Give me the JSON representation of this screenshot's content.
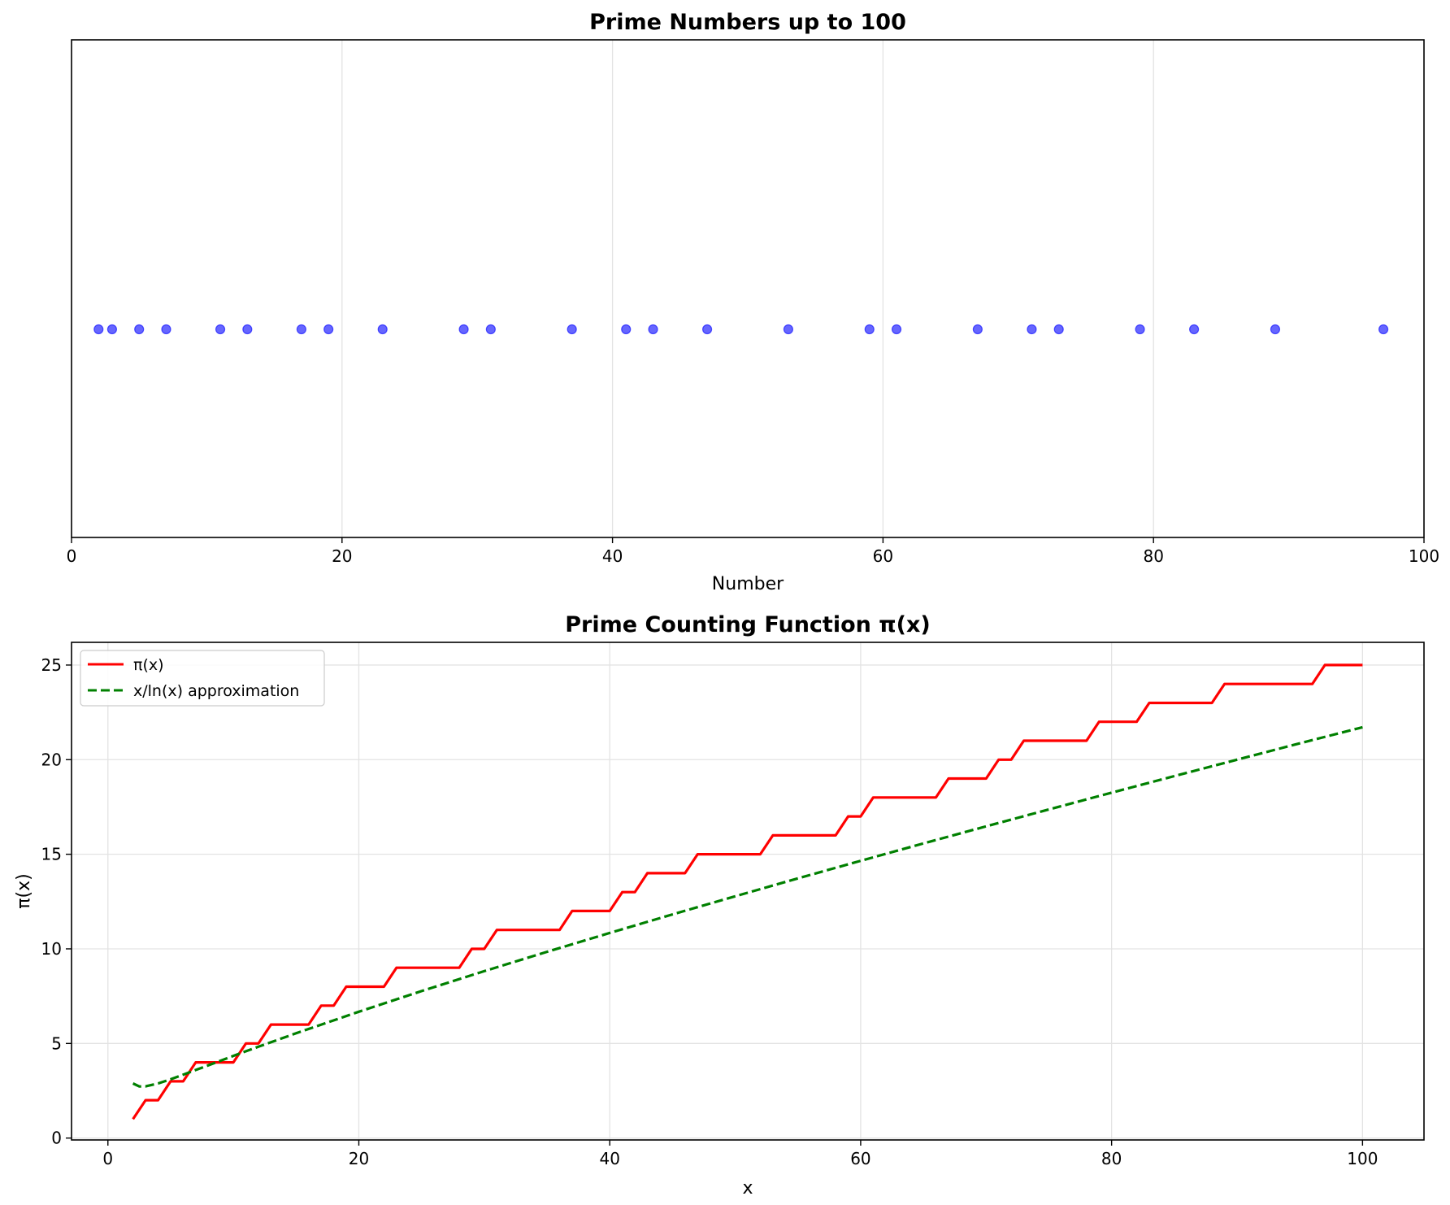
{
  "colors": {
    "scatter": "#0000ff",
    "pi_line": "#ff0000",
    "approx_line": "#008000",
    "grid": "#e3e3e3"
  },
  "chart_data": [
    {
      "type": "scatter",
      "title": "Prime Numbers up to 100",
      "xlabel": "Number",
      "ylabel": "",
      "xlim": [
        0,
        100
      ],
      "y_hidden": true,
      "grid": "vertical",
      "xticks": [
        0,
        20,
        40,
        60,
        80,
        100
      ],
      "x": [
        2,
        3,
        5,
        7,
        11,
        13,
        17,
        19,
        23,
        29,
        31,
        37,
        41,
        43,
        47,
        53,
        59,
        61,
        67,
        71,
        73,
        79,
        83,
        89,
        97
      ],
      "y": [
        0,
        0,
        0,
        0,
        0,
        0,
        0,
        0,
        0,
        0,
        0,
        0,
        0,
        0,
        0,
        0,
        0,
        0,
        0,
        0,
        0,
        0,
        0,
        0,
        0
      ],
      "marker_color": "blue",
      "marker_alpha": 0.6
    },
    {
      "type": "line",
      "title": "Prime Counting Function π(x)",
      "xlabel": "x",
      "ylabel": "π(x)",
      "xlim": [
        -2.9,
        104.9
      ],
      "ylim": [
        -0.1,
        26.2
      ],
      "grid": "both",
      "legend_position": "top-left",
      "xticks": [
        0,
        20,
        40,
        60,
        80,
        100
      ],
      "yticks": [
        0,
        5,
        10,
        15,
        20,
        25
      ],
      "series": [
        {
          "name": "π(x)",
          "style": "solid",
          "color": "red",
          "x": [
            2,
            3,
            4,
            5,
            6,
            7,
            8,
            9,
            10,
            11,
            12,
            13,
            14,
            15,
            16,
            17,
            18,
            19,
            20,
            21,
            22,
            23,
            24,
            25,
            26,
            27,
            28,
            29,
            30,
            31,
            32,
            33,
            34,
            35,
            36,
            37,
            38,
            39,
            40,
            41,
            42,
            43,
            44,
            45,
            46,
            47,
            48,
            49,
            50,
            51,
            52,
            53,
            54,
            55,
            56,
            57,
            58,
            59,
            60,
            61,
            62,
            63,
            64,
            65,
            66,
            67,
            68,
            69,
            70,
            71,
            72,
            73,
            74,
            75,
            76,
            77,
            78,
            79,
            80,
            81,
            82,
            83,
            84,
            85,
            86,
            87,
            88,
            89,
            90,
            91,
            92,
            93,
            94,
            95,
            96,
            97,
            98,
            99,
            100
          ],
          "values": [
            1,
            2,
            2,
            3,
            3,
            4,
            4,
            4,
            4,
            5,
            5,
            6,
            6,
            6,
            6,
            7,
            7,
            8,
            8,
            8,
            8,
            9,
            9,
            9,
            9,
            9,
            9,
            10,
            10,
            11,
            11,
            11,
            11,
            11,
            11,
            12,
            12,
            12,
            12,
            13,
            13,
            14,
            14,
            14,
            14,
            15,
            15,
            15,
            15,
            15,
            15,
            16,
            16,
            16,
            16,
            16,
            16,
            17,
            17,
            18,
            18,
            18,
            18,
            18,
            18,
            19,
            19,
            19,
            19,
            20,
            20,
            21,
            21,
            21,
            21,
            21,
            21,
            22,
            22,
            22,
            22,
            23,
            23,
            23,
            23,
            23,
            23,
            24,
            24,
            24,
            24,
            24,
            24,
            24,
            24,
            25,
            25,
            25,
            25
          ]
        },
        {
          "name": "x/ln(x) approximation",
          "style": "dashed",
          "color": "green",
          "x": [
            2,
            2.5,
            3,
            4,
            5,
            6,
            8,
            10,
            12,
            15,
            20,
            25,
            30,
            35,
            40,
            45,
            50,
            55,
            60,
            65,
            70,
            75,
            80,
            85,
            90,
            95,
            100
          ],
          "values": [
            2.885,
            2.728,
            2.731,
            2.885,
            3.107,
            3.349,
            3.847,
            4.343,
            4.829,
            5.539,
            6.676,
            7.767,
            8.82,
            9.845,
            10.843,
            11.822,
            12.781,
            13.725,
            14.654,
            15.571,
            16.476,
            17.371,
            18.256,
            19.132,
            20.001,
            20.862,
            21.715
          ]
        }
      ]
    }
  ]
}
